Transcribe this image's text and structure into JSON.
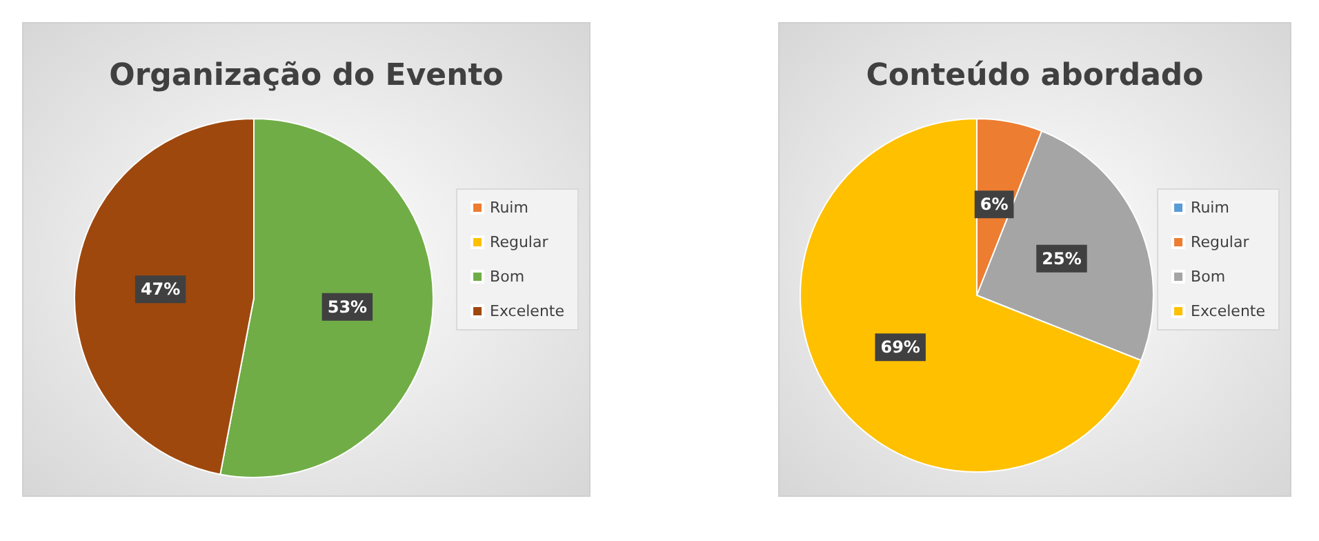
{
  "chart_data": [
    {
      "type": "pie",
      "title": "Organização do Evento",
      "categories": [
        "Ruim",
        "Regular",
        "Bom",
        "Excelente"
      ],
      "values": [
        0,
        0,
        53,
        47
      ],
      "colors": [
        "#ed7d31",
        "#ffc000",
        "#70ad47",
        "#9e480e"
      ],
      "value_labels": [
        null,
        null,
        "53%",
        "47%"
      ],
      "legend": "right"
    },
    {
      "type": "pie",
      "title": "Conteúdo abordado",
      "categories": [
        "Ruim",
        "Regular",
        "Bom",
        "Excelente"
      ],
      "values": [
        0,
        6,
        25,
        69
      ],
      "colors": [
        "#5b9bd5",
        "#ed7d31",
        "#a5a5a5",
        "#ffc000"
      ],
      "value_labels": [
        null,
        "6%",
        "25%",
        "69%"
      ],
      "legend": "right"
    }
  ]
}
